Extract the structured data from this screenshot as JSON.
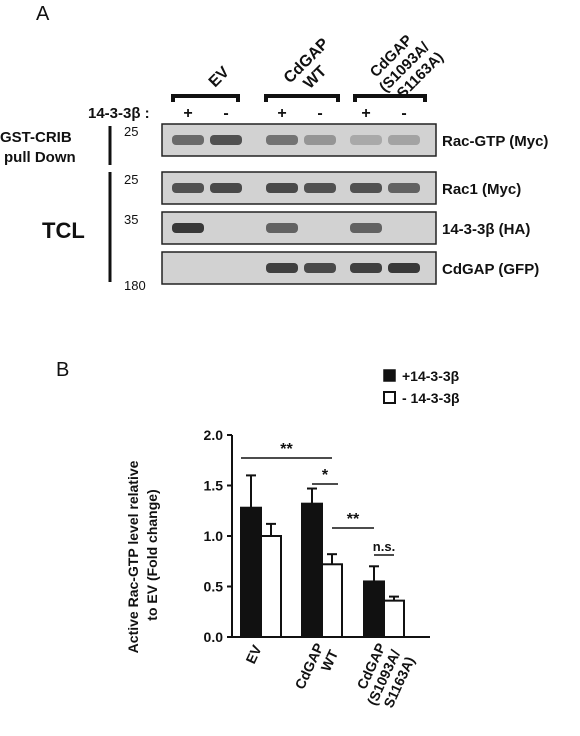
{
  "panel_a": {
    "label": "A",
    "groups": [
      {
        "label_lines": [
          "EV"
        ]
      },
      {
        "label_lines": [
          "CdGAP",
          "WT"
        ]
      },
      {
        "label_lines": [
          "CdGAP",
          "(S1093A/",
          "S1163A)"
        ]
      }
    ],
    "row_label": "14-3-3β :",
    "lane_signs": [
      "+",
      "-",
      "+",
      "-",
      "+",
      "-"
    ],
    "left_labels": {
      "pulldown": [
        "GST-CRIB",
        "pull Down"
      ],
      "tcl": "TCL"
    },
    "blots": [
      {
        "marker": "25",
        "label": "Rac-GTP (Myc)",
        "bands": [
          0.55,
          0.7,
          0.5,
          0.3,
          0.18,
          0.22
        ]
      },
      {
        "marker": "25",
        "label": "Rac1 (Myc)",
        "bands": [
          0.7,
          0.75,
          0.75,
          0.7,
          0.7,
          0.6
        ]
      },
      {
        "marker": "35",
        "label": "14-3-3β (HA)",
        "bands": [
          0.85,
          0.0,
          0.6,
          0.0,
          0.6,
          0.0
        ]
      },
      {
        "marker": "",
        "label": "CdGAP (GFP)",
        "bands": [
          0.0,
          0.0,
          0.8,
          0.75,
          0.8,
          0.85
        ]
      }
    ],
    "bottom_marker": "180"
  },
  "panel_b": {
    "label": "B",
    "legend": [
      {
        "label": "+14-3-3β",
        "fill": "#111111"
      },
      {
        "label": "- 14-3-3β",
        "fill": "#ffffff"
      }
    ]
  },
  "chart_data": {
    "type": "bar",
    "categories": [
      [
        "EV"
      ],
      [
        "CdGAP",
        "WT"
      ],
      [
        "CdGAP",
        "(S1093A/",
        "S1163A)"
      ]
    ],
    "series": [
      {
        "name": "+14-3-3β",
        "values": [
          1.28,
          1.32,
          0.55
        ],
        "errors": [
          0.32,
          0.15,
          0.15
        ],
        "color": "#111111"
      },
      {
        "name": "- 14-3-3β",
        "values": [
          1.0,
          0.72,
          0.36
        ],
        "errors": [
          0.12,
          0.1,
          0.04
        ],
        "color": "#ffffff"
      }
    ],
    "ylabel_lines": [
      "Active Rac-GTP level relative",
      "to EV (Fold change)"
    ],
    "ylim": [
      0,
      2.0
    ],
    "yticks": [
      "0.0",
      "0.5",
      "1.0",
      "1.5",
      "2.0"
    ],
    "significance": [
      {
        "label": "**",
        "from": [
          1,
          1
        ],
        "to": [
          0,
          0
        ]
      },
      {
        "label": "*",
        "from": [
          1,
          0
        ],
        "to": [
          1,
          1
        ]
      },
      {
        "label": "**",
        "from": [
          1,
          1
        ],
        "to": [
          2,
          0
        ]
      },
      {
        "label": "n.s.",
        "from": [
          2,
          0
        ],
        "to": [
          2,
          1
        ]
      }
    ]
  }
}
